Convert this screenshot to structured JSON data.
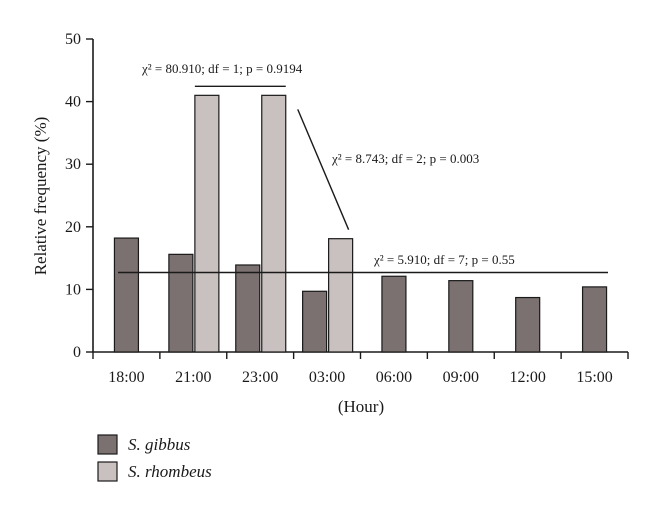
{
  "chart_data": {
    "type": "bar",
    "categories": [
      "18:00",
      "21:00",
      "23:00",
      "03:00",
      "06:00",
      "09:00",
      "12:00",
      "15:00"
    ],
    "series": [
      {
        "name": "S. gibbus",
        "color": "#7a7170",
        "values": [
          18.2,
          15.6,
          13.9,
          9.7,
          12.1,
          11.4,
          8.7,
          10.4
        ]
      },
      {
        "name": "S. rhombeus",
        "color": "#c9c1bf",
        "values": [
          null,
          41,
          41,
          18.1,
          null,
          null,
          null,
          null
        ]
      }
    ],
    "xlabel": "(Hour)",
    "ylabel": "Relative frequency (%)",
    "ylim": [
      0,
      50
    ],
    "yticks": [
      "0",
      "10",
      "20",
      "30",
      "40",
      "50"
    ],
    "grid": false,
    "legend_position": "bottom-left",
    "annotations": [
      {
        "id": "a1",
        "text": "χ² = 80.910; df = 1; p = 0.9194",
        "line_y": 41,
        "from": "21:00",
        "to": "23:00"
      },
      {
        "id": "a2",
        "text": "χ² = 8.743; df = 2; p = 0.003",
        "from": "23:00",
        "to": "03:00"
      },
      {
        "id": "a3",
        "text": "χ² = 5.910; df = 7; p = 0.55",
        "line_y": 12.7
      }
    ]
  }
}
